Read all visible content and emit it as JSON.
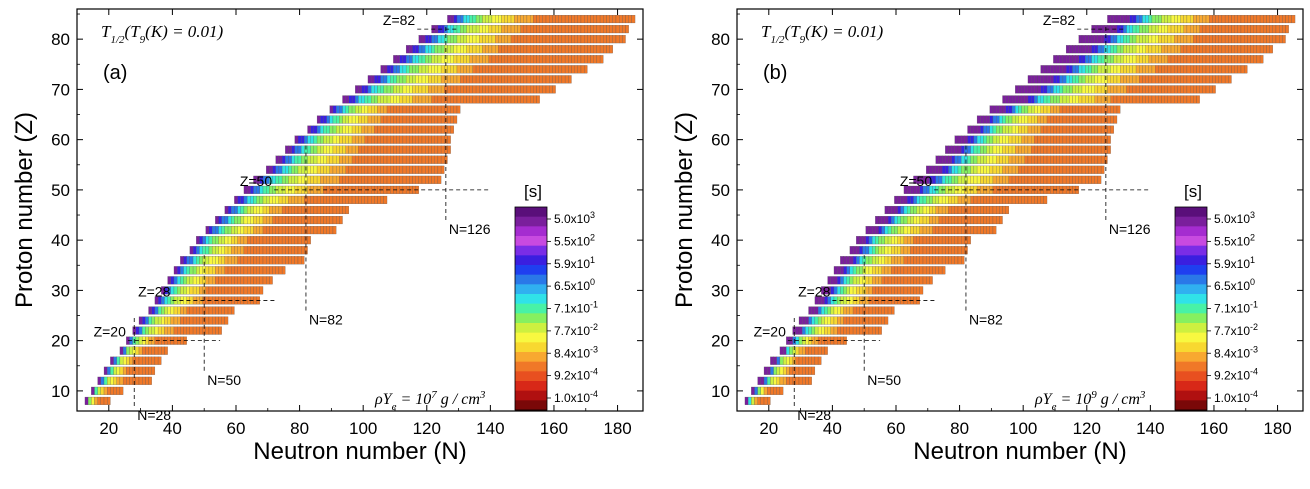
{
  "chart_data": [
    {
      "panel_label": "(a)",
      "type": "heatmap",
      "title": "",
      "xlabel": "Neutron number (N)",
      "ylabel": "Proton number (Z)",
      "xlim": [
        10,
        188
      ],
      "ylim": [
        6,
        86
      ],
      "x_ticks": [
        20,
        40,
        60,
        80,
        100,
        120,
        140,
        160,
        180
      ],
      "y_ticks": [
        10,
        20,
        30,
        40,
        50,
        60,
        70,
        80
      ],
      "condition": {
        "symbol": "T",
        "sub": "1/2",
        "rest": "(T",
        "sub2": "9",
        "rest2": "(K) = 0.01)"
      },
      "density": {
        "text": "ρY",
        "sub": "e",
        "eq": " = 10",
        "exp": "7",
        "unit": " g / cm",
        "unit_exp": "3"
      },
      "magic_labels": [
        {
          "label": "Z=82",
          "axis": "Z",
          "value": 82,
          "span": [
            117,
            130
          ]
        },
        {
          "label": "Z=50",
          "axis": "Z",
          "value": 50,
          "span": [
            72,
            140
          ]
        },
        {
          "label": "Z=28",
          "axis": "Z",
          "value": 28,
          "span": [
            40,
            73
          ]
        },
        {
          "label": "Z=20",
          "axis": "Z",
          "value": 20,
          "span": [
            26,
            55
          ]
        },
        {
          "label": "N=126",
          "axis": "N",
          "value": 126,
          "span": [
            44,
            83
          ]
        },
        {
          "label": "N=82",
          "axis": "N",
          "value": 82,
          "span": [
            26,
            59
          ]
        },
        {
          "label": "N=50",
          "axis": "N",
          "value": 50,
          "span": [
            14,
            37
          ]
        },
        {
          "label": "N=28",
          "axis": "N",
          "value": 28,
          "span": [
            7,
            25
          ]
        }
      ],
      "rows": [
        {
          "z": 8,
          "n_min": 13,
          "n_max": 20
        },
        {
          "z": 10,
          "n_min": 15,
          "n_max": 24
        },
        {
          "z": 12,
          "n_min": 17,
          "n_max": 33
        },
        {
          "z": 14,
          "n_min": 19,
          "n_max": 34
        },
        {
          "z": 16,
          "n_min": 21,
          "n_max": 36
        },
        {
          "z": 18,
          "n_min": 24,
          "n_max": 38
        },
        {
          "z": 20,
          "n_min": 26,
          "n_max": 44
        },
        {
          "z": 22,
          "n_min": 28,
          "n_max": 55
        },
        {
          "z": 24,
          "n_min": 30,
          "n_max": 57
        },
        {
          "z": 26,
          "n_min": 33,
          "n_max": 59
        },
        {
          "z": 28,
          "n_min": 35,
          "n_max": 67
        },
        {
          "z": 30,
          "n_min": 37,
          "n_max": 68
        },
        {
          "z": 32,
          "n_min": 39,
          "n_max": 71
        },
        {
          "z": 34,
          "n_min": 41,
          "n_max": 75
        },
        {
          "z": 36,
          "n_min": 43,
          "n_max": 81
        },
        {
          "z": 38,
          "n_min": 46,
          "n_max": 82
        },
        {
          "z": 40,
          "n_min": 48,
          "n_max": 83
        },
        {
          "z": 42,
          "n_min": 51,
          "n_max": 91
        },
        {
          "z": 44,
          "n_min": 54,
          "n_max": 93
        },
        {
          "z": 46,
          "n_min": 57,
          "n_max": 95
        },
        {
          "z": 48,
          "n_min": 60,
          "n_max": 107
        },
        {
          "z": 50,
          "n_min": 63,
          "n_max": 117
        },
        {
          "z": 52,
          "n_min": 66,
          "n_max": 124
        },
        {
          "z": 54,
          "n_min": 70,
          "n_max": 125
        },
        {
          "z": 56,
          "n_min": 73,
          "n_max": 126
        },
        {
          "z": 58,
          "n_min": 76,
          "n_max": 127
        },
        {
          "z": 60,
          "n_min": 79,
          "n_max": 127
        },
        {
          "z": 62,
          "n_min": 83,
          "n_max": 128
        },
        {
          "z": 64,
          "n_min": 86,
          "n_max": 129
        },
        {
          "z": 66,
          "n_min": 90,
          "n_max": 130
        },
        {
          "z": 68,
          "n_min": 94,
          "n_max": 155
        },
        {
          "z": 70,
          "n_min": 98,
          "n_max": 160
        },
        {
          "z": 72,
          "n_min": 102,
          "n_max": 165
        },
        {
          "z": 74,
          "n_min": 106,
          "n_max": 170
        },
        {
          "z": 76,
          "n_min": 110,
          "n_max": 175
        },
        {
          "z": 78,
          "n_min": 114,
          "n_max": 178
        },
        {
          "z": 80,
          "n_min": 118,
          "n_max": 182
        },
        {
          "z": 82,
          "n_min": 122,
          "n_max": 183
        },
        {
          "z": 84,
          "n_min": 127,
          "n_max": 185
        }
      ]
    },
    {
      "panel_label": "(b)",
      "type": "heatmap",
      "title": "",
      "xlabel": "Neutron number (N)",
      "ylabel": "Proton number (Z)",
      "xlim": [
        10,
        188
      ],
      "ylim": [
        6,
        86
      ],
      "x_ticks": [
        20,
        40,
        60,
        80,
        100,
        120,
        140,
        160,
        180
      ],
      "y_ticks": [
        10,
        20,
        30,
        40,
        50,
        60,
        70,
        80
      ],
      "condition": {
        "symbol": "T",
        "sub": "1/2",
        "rest": "(T",
        "sub2": "9",
        "rest2": "(K) = 0.01)"
      },
      "density": {
        "text": "ρY",
        "sub": "e",
        "eq": " = 10",
        "exp": "9",
        "unit": " g / cm",
        "unit_exp": "3"
      },
      "magic_labels": [
        {
          "label": "Z=82",
          "axis": "Z",
          "value": 82,
          "span": [
            117,
            132
          ]
        },
        {
          "label": "Z=50",
          "axis": "Z",
          "value": 50,
          "span": [
            72,
            140
          ]
        },
        {
          "label": "Z=28",
          "axis": "Z",
          "value": 28,
          "span": [
            40,
            73
          ]
        },
        {
          "label": "Z=20",
          "axis": "Z",
          "value": 20,
          "span": [
            26,
            55
          ]
        },
        {
          "label": "N=126",
          "axis": "N",
          "value": 126,
          "span": [
            44,
            83
          ]
        },
        {
          "label": "N=82",
          "axis": "N",
          "value": 82,
          "span": [
            26,
            59
          ]
        },
        {
          "label": "N=50",
          "axis": "N",
          "value": 50,
          "span": [
            14,
            37
          ]
        },
        {
          "label": "N=28",
          "axis": "N",
          "value": 28,
          "span": [
            7,
            25
          ]
        }
      ],
      "rows": [
        {
          "z": 8,
          "n_min": 13,
          "n_max": 20
        },
        {
          "z": 10,
          "n_min": 15,
          "n_max": 24
        },
        {
          "z": 12,
          "n_min": 17,
          "n_max": 33
        },
        {
          "z": 14,
          "n_min": 19,
          "n_max": 34
        },
        {
          "z": 16,
          "n_min": 21,
          "n_max": 36
        },
        {
          "z": 18,
          "n_min": 24,
          "n_max": 38
        },
        {
          "z": 20,
          "n_min": 26,
          "n_max": 44
        },
        {
          "z": 22,
          "n_min": 28,
          "n_max": 55
        },
        {
          "z": 24,
          "n_min": 30,
          "n_max": 57
        },
        {
          "z": 26,
          "n_min": 33,
          "n_max": 59
        },
        {
          "z": 28,
          "n_min": 35,
          "n_max": 67
        },
        {
          "z": 30,
          "n_min": 37,
          "n_max": 68
        },
        {
          "z": 32,
          "n_min": 39,
          "n_max": 71
        },
        {
          "z": 34,
          "n_min": 41,
          "n_max": 75
        },
        {
          "z": 36,
          "n_min": 43,
          "n_max": 81
        },
        {
          "z": 38,
          "n_min": 46,
          "n_max": 82
        },
        {
          "z": 40,
          "n_min": 48,
          "n_max": 83
        },
        {
          "z": 42,
          "n_min": 51,
          "n_max": 91
        },
        {
          "z": 44,
          "n_min": 54,
          "n_max": 93
        },
        {
          "z": 46,
          "n_min": 57,
          "n_max": 95
        },
        {
          "z": 48,
          "n_min": 60,
          "n_max": 107
        },
        {
          "z": 50,
          "n_min": 63,
          "n_max": 117
        },
        {
          "z": 52,
          "n_min": 66,
          "n_max": 124
        },
        {
          "z": 54,
          "n_min": 70,
          "n_max": 125
        },
        {
          "z": 56,
          "n_min": 73,
          "n_max": 126
        },
        {
          "z": 58,
          "n_min": 76,
          "n_max": 127
        },
        {
          "z": 60,
          "n_min": 79,
          "n_max": 127
        },
        {
          "z": 62,
          "n_min": 83,
          "n_max": 128
        },
        {
          "z": 64,
          "n_min": 86,
          "n_max": 129
        },
        {
          "z": 66,
          "n_min": 90,
          "n_max": 130
        },
        {
          "z": 68,
          "n_min": 94,
          "n_max": 155
        },
        {
          "z": 70,
          "n_min": 98,
          "n_max": 160
        },
        {
          "z": 72,
          "n_min": 102,
          "n_max": 165
        },
        {
          "z": 74,
          "n_min": 106,
          "n_max": 170
        },
        {
          "z": 76,
          "n_min": 110,
          "n_max": 175
        },
        {
          "z": 78,
          "n_min": 114,
          "n_max": 178
        },
        {
          "z": 80,
          "n_min": 118,
          "n_max": 182
        },
        {
          "z": 82,
          "n_min": 122,
          "n_max": 183
        },
        {
          "z": 84,
          "n_min": 127,
          "n_max": 185
        }
      ]
    }
  ],
  "colorbar": {
    "title": "[s]",
    "tick_labels": [
      {
        "mant": "5.0x10",
        "exp": "3"
      },
      {
        "mant": "5.5x10",
        "exp": "2"
      },
      {
        "mant": "5.9x10",
        "exp": "1"
      },
      {
        "mant": "6.5x10",
        "exp": "0"
      },
      {
        "mant": "7.1x10",
        "exp": "-1"
      },
      {
        "mant": "7.7x10",
        "exp": "-2"
      },
      {
        "mant": "8.4x10",
        "exp": "-3"
      },
      {
        "mant": "9.2x10",
        "exp": "-4"
      },
      {
        "mant": "1.0x10",
        "exp": "-4"
      }
    ],
    "colors": [
      "#5a0f7a",
      "#7a1f9c",
      "#a52cd0",
      "#c84ae0",
      "#7a2de6",
      "#3a1fe0",
      "#1f3ff0",
      "#2a78e8",
      "#30b0f0",
      "#30e2e8",
      "#48f2a6",
      "#86f060",
      "#cdf040",
      "#f8f840",
      "#f8d830",
      "#f8a830",
      "#f07828",
      "#e85020",
      "#d82818",
      "#b01010",
      "#7a0808"
    ]
  }
}
